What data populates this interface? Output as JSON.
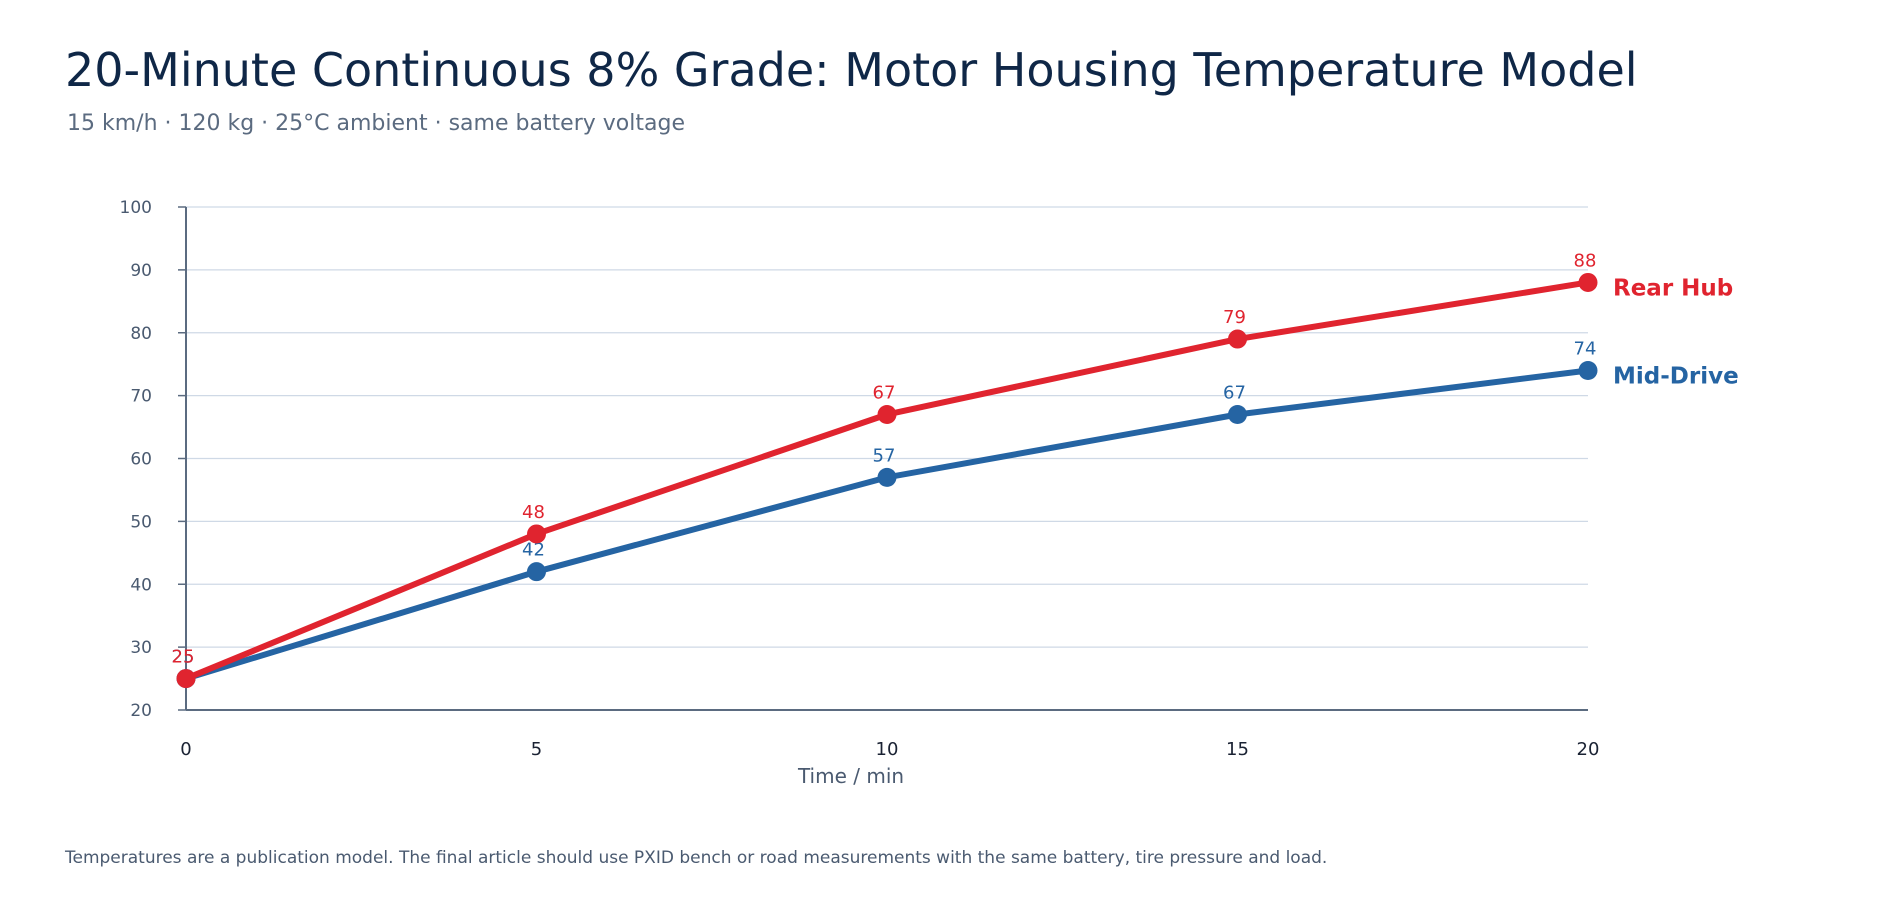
{
  "chart_data": {
    "type": "line",
    "title": "20-Minute Continuous 8% Grade: Motor Housing Temperature Model",
    "subtitle": "15 km/h · 120 kg · 25°C ambient · same battery voltage",
    "xlabel": "Time / min",
    "ylabel": "",
    "x": [
      0,
      5,
      10,
      15,
      20
    ],
    "xlim": [
      0,
      20
    ],
    "ylim": [
      20,
      100
    ],
    "x_ticks": [
      0,
      5,
      10,
      15,
      20
    ],
    "y_ticks": [
      20,
      30,
      40,
      50,
      60,
      70,
      80,
      90,
      100
    ],
    "grid": "horizontal",
    "legend": "end-of-line labels",
    "series": [
      {
        "name": "Rear Hub",
        "color": "#e0242f",
        "values": [
          25,
          48,
          67,
          79,
          88
        ]
      },
      {
        "name": "Mid-Drive",
        "color": "#2564a3",
        "values": [
          25,
          42,
          57,
          67,
          74
        ]
      }
    ],
    "footnote": "Temperatures are a publication model. The final article should use PXID bench or road measurements with the same battery, tire pressure and load."
  }
}
